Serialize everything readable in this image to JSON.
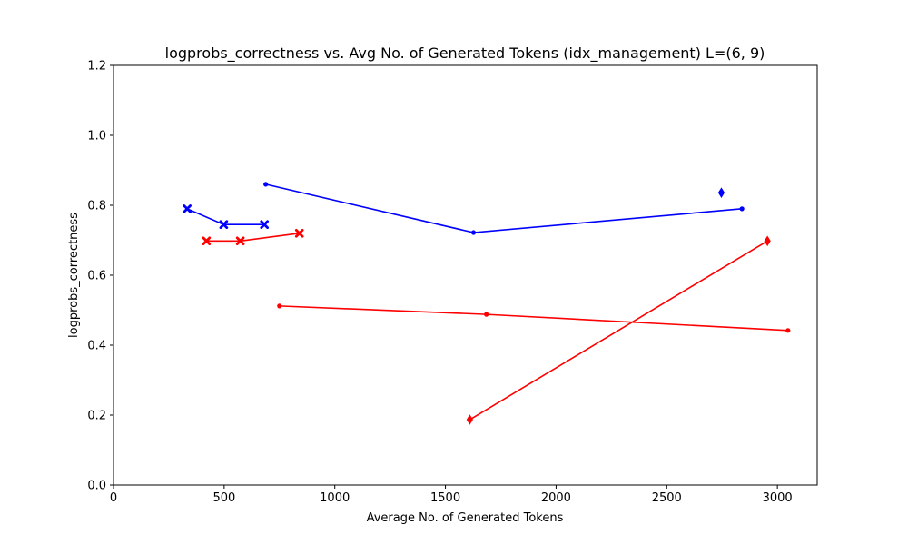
{
  "chart_data": {
    "type": "line",
    "title": "logprobs_correctness vs. Avg No. of Generated Tokens (idx_management) L=(6, 9)",
    "xlabel": "Average No. of Generated Tokens",
    "ylabel": "logprobs_correctness",
    "xlim": [
      0,
      3180
    ],
    "ylim": [
      0,
      1.2
    ],
    "xticks": [
      0,
      500,
      1000,
      1500,
      2000,
      2500,
      3000
    ],
    "yticks": [
      0.0,
      0.2,
      0.4,
      0.6,
      0.8,
      1.0,
      1.2
    ],
    "xtick_labels": [
      "0",
      "500",
      "1000",
      "1500",
      "2000",
      "2500",
      "3000"
    ],
    "ytick_labels": [
      "0.0",
      "0.2",
      "0.4",
      "0.6",
      "0.8",
      "1.0",
      "1.2"
    ],
    "grid": false,
    "series": [
      {
        "color": "#0000ff",
        "marker": "x",
        "x": [
          333,
          498,
          682
        ],
        "y": [
          0.79,
          0.745,
          0.745
        ]
      },
      {
        "color": "#ff0000",
        "marker": "x",
        "x": [
          420,
          573,
          840
        ],
        "y": [
          0.698,
          0.698,
          0.72
        ]
      },
      {
        "color": "#0000ff",
        "marker": "dot",
        "x": [
          688,
          1627,
          2840
        ],
        "y": [
          0.86,
          0.722,
          0.79
        ]
      },
      {
        "color": "#ff0000",
        "marker": "dot",
        "x": [
          750,
          1685,
          3048
        ],
        "y": [
          0.512,
          0.488,
          0.442
        ]
      },
      {
        "color": "#0000ff",
        "marker": "diamond",
        "x": [
          2747
        ],
        "y": [
          0.836
        ]
      },
      {
        "color": "#ff0000",
        "marker": "diamond",
        "x": [
          1610,
          2955
        ],
        "y": [
          0.187,
          0.698
        ]
      }
    ]
  }
}
